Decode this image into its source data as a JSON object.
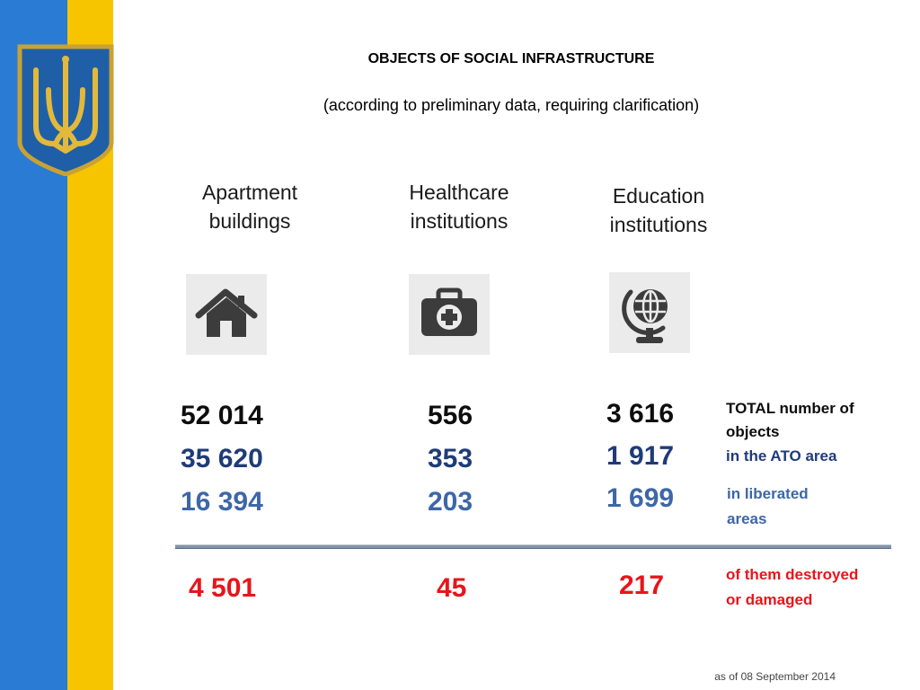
{
  "slide": {
    "title": "OBJECTS OF SOCIAL INFRASTRUCTURE",
    "subtitle": "(according to preliminary data, requiring clarification)",
    "date_note": "as of  08 September 2014"
  },
  "colors": {
    "flag_blue": "#2a7bd3",
    "flag_yellow": "#f7c500",
    "total": "#0d0d0d",
    "ato": "#1f3b78",
    "liberated": "#3d67a6",
    "damaged": "#e8151b"
  },
  "columns": [
    {
      "heading": [
        "Apartment",
        "buildings"
      ],
      "icon": "house-icon",
      "total": "52 014",
      "ato": "35 620",
      "liberated": "16 394",
      "damaged": "4 501"
    },
    {
      "heading": [
        "Healthcare",
        "institutions"
      ],
      "icon": "medical-kit-icon",
      "total": "556",
      "ato": "353",
      "liberated": "203",
      "damaged": "45"
    },
    {
      "heading": [
        "Education",
        "institutions"
      ],
      "icon": "globe-icon",
      "total": "3 616",
      "ato": "1 917",
      "liberated": "1 699",
      "damaged": "217"
    }
  ],
  "legend": {
    "total_line1": "TOTAL number of",
    "total_line2": "objects",
    "ato": "in the ATO area",
    "liberated_line1": "in liberated",
    "liberated_line2": "areas",
    "damaged_line1": "of them destroyed",
    "damaged_line2": "or damaged"
  }
}
